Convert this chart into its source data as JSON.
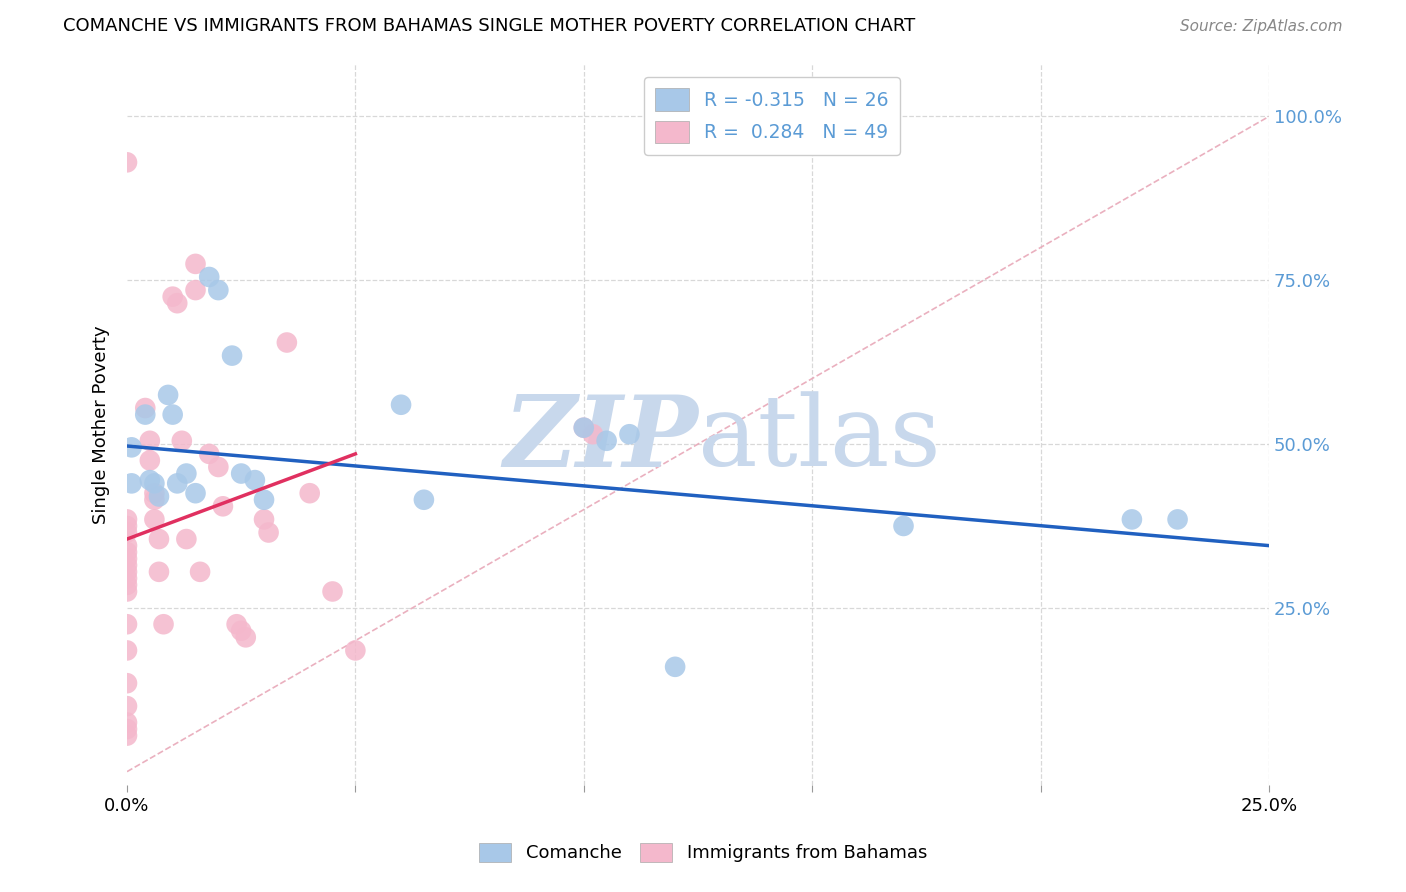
{
  "title": "COMANCHE VS IMMIGRANTS FROM BAHAMAS SINGLE MOTHER POVERTY CORRELATION CHART",
  "source": "Source: ZipAtlas.com",
  "ylabel": "Single Mother Poverty",
  "xlim": [
    0.0,
    0.25
  ],
  "ylim": [
    -0.02,
    1.08
  ],
  "yticks": [
    0.0,
    0.25,
    0.5,
    0.75,
    1.0
  ],
  "xticks": [
    0.0,
    0.05,
    0.1,
    0.15,
    0.2,
    0.25
  ],
  "legend_blue_r": "-0.315",
  "legend_blue_n": "26",
  "legend_pink_r": "0.284",
  "legend_pink_n": "49",
  "blue_scatter_color": "#a8c8e8",
  "pink_scatter_color": "#f4b8cc",
  "blue_line_color": "#2060c0",
  "pink_line_color": "#e03060",
  "dash_line_color": "#e8a8b8",
  "grid_color": "#d8d8d8",
  "watermark_color": "#c8d8ec",
  "blue_line_x0": 0.0,
  "blue_line_y0": 0.497,
  "blue_line_x1": 0.25,
  "blue_line_y1": 0.345,
  "pink_line_x0": 0.0,
  "pink_line_y0": 0.355,
  "pink_line_x1": 0.05,
  "pink_line_y1": 0.485,
  "comanche_x": [
    0.001,
    0.001,
    0.004,
    0.005,
    0.006,
    0.007,
    0.009,
    0.01,
    0.011,
    0.013,
    0.015,
    0.018,
    0.02,
    0.023,
    0.025,
    0.028,
    0.03,
    0.06,
    0.065,
    0.1,
    0.105,
    0.11,
    0.12,
    0.17,
    0.22,
    0.23
  ],
  "comanche_y": [
    0.495,
    0.44,
    0.545,
    0.445,
    0.44,
    0.42,
    0.575,
    0.545,
    0.44,
    0.455,
    0.425,
    0.755,
    0.735,
    0.635,
    0.455,
    0.445,
    0.415,
    0.56,
    0.415,
    0.525,
    0.505,
    0.515,
    0.16,
    0.375,
    0.385,
    0.385
  ],
  "bahamas_x": [
    0.0,
    0.0,
    0.0,
    0.0,
    0.0,
    0.0,
    0.0,
    0.0,
    0.0,
    0.0,
    0.0,
    0.0,
    0.0,
    0.0,
    0.0,
    0.0,
    0.0,
    0.0,
    0.0,
    0.004,
    0.005,
    0.005,
    0.006,
    0.006,
    0.006,
    0.007,
    0.007,
    0.008,
    0.01,
    0.011,
    0.012,
    0.013,
    0.015,
    0.015,
    0.016,
    0.018,
    0.02,
    0.021,
    0.024,
    0.025,
    0.026,
    0.03,
    0.031,
    0.035,
    0.04,
    0.045,
    0.05,
    0.1,
    0.102
  ],
  "bahamas_y": [
    0.93,
    0.375,
    0.385,
    0.365,
    0.345,
    0.335,
    0.325,
    0.315,
    0.305,
    0.295,
    0.285,
    0.275,
    0.225,
    0.185,
    0.135,
    0.1,
    0.075,
    0.065,
    0.055,
    0.555,
    0.505,
    0.475,
    0.425,
    0.415,
    0.385,
    0.355,
    0.305,
    0.225,
    0.725,
    0.715,
    0.505,
    0.355,
    0.775,
    0.735,
    0.305,
    0.485,
    0.465,
    0.405,
    0.225,
    0.215,
    0.205,
    0.385,
    0.365,
    0.655,
    0.425,
    0.275,
    0.185,
    0.525,
    0.515
  ]
}
